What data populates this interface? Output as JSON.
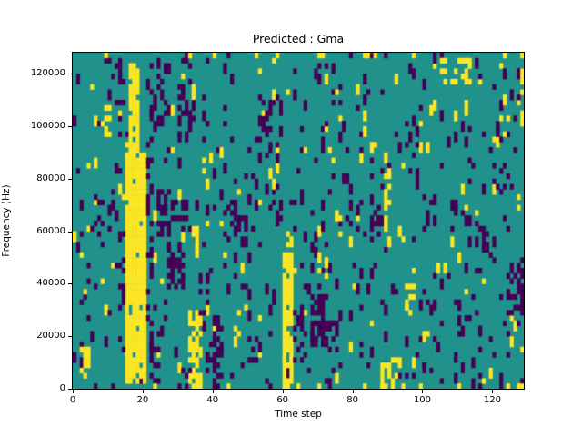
{
  "title": "Predicted : Gma",
  "axes": {
    "xlabel": "Time step",
    "ylabel": "Frequency (Hz)",
    "x_ticks": {
      "values": [
        0,
        20,
        40,
        60,
        80,
        100,
        120
      ],
      "labels": [
        "0",
        "20",
        "40",
        "60",
        "80",
        "100",
        "120"
      ]
    },
    "y_ticks": {
      "values": [
        0,
        20000,
        40000,
        60000,
        80000,
        100000,
        120000
      ],
      "labels": [
        "0",
        "20000",
        "40000",
        "60000",
        "80000",
        "100000",
        "120000"
      ]
    }
  },
  "chart_data": {
    "type": "heatmap",
    "title": "Predicted : Gma",
    "xlabel": "Time step",
    "ylabel": "Frequency (Hz)",
    "xlim": [
      0,
      129
    ],
    "ylim": [
      0,
      128000
    ],
    "grid": {
      "cols": 129,
      "rows": 64,
      "hz_per_row": 2000
    },
    "classes": [
      "purple",
      "teal",
      "yellow"
    ],
    "colors": {
      "purple": "#440154",
      "teal": "#21918c",
      "yellow": "#fde725",
      "background": "teal",
      "figure_bg": "#ffffff",
      "axis": "#000000"
    },
    "legend": "none",
    "grid_lines": "off",
    "noise": {
      "seed": 42,
      "purple_density": 0.05,
      "yellow_density": 0.018,
      "streak_prob": 0.45
    },
    "regions": [
      {
        "color": "yellow",
        "x": [
          15,
          21
        ],
        "y": [
          1000,
          90000
        ],
        "density": 0.95
      },
      {
        "color": "yellow",
        "x": [
          16,
          19
        ],
        "y": [
          90000,
          123000
        ],
        "density": 0.8
      },
      {
        "color": "yellow",
        "x": [
          2,
          5
        ],
        "y": [
          2000,
          16000
        ],
        "density": 0.5
      },
      {
        "color": "yellow",
        "x": [
          33,
          37
        ],
        "y": [
          0,
          30000
        ],
        "density": 0.6
      },
      {
        "color": "yellow",
        "x": [
          34,
          36
        ],
        "y": [
          50000,
          62000
        ],
        "density": 0.5
      },
      {
        "color": "yellow",
        "x": [
          60,
          63
        ],
        "y": [
          0,
          52000
        ],
        "density": 0.9
      },
      {
        "color": "yellow",
        "x": [
          61,
          63
        ],
        "y": [
          52000,
          62000
        ],
        "density": 0.4
      },
      {
        "color": "yellow",
        "x": [
          89,
          91
        ],
        "y": [
          54000,
          86000
        ],
        "density": 0.6
      },
      {
        "color": "yellow",
        "x": [
          88,
          93
        ],
        "y": [
          0,
          12000
        ],
        "density": 0.55
      },
      {
        "color": "yellow",
        "x": [
          95,
          98
        ],
        "y": [
          28000,
          40000
        ],
        "density": 0.45
      },
      {
        "color": "yellow",
        "x": [
          8,
          11
        ],
        "y": [
          96000,
          108000
        ],
        "density": 0.45
      },
      {
        "color": "yellow",
        "x": [
          105,
          113
        ],
        "y": [
          116000,
          126000
        ],
        "density": 0.45
      },
      {
        "color": "yellow",
        "x": [
          122,
          125
        ],
        "y": [
          96000,
          104000
        ],
        "density": 0.4
      },
      {
        "color": "yellow",
        "x": [
          56,
          58
        ],
        "y": [
          120000,
          127000
        ],
        "density": 0.5
      },
      {
        "color": "yellow",
        "x": [
          117,
          120
        ],
        "y": [
          0,
          7000
        ],
        "density": 0.4
      },
      {
        "color": "yellow",
        "x": [
          46,
          48
        ],
        "y": [
          20000,
          30000
        ],
        "density": 0.3
      },
      {
        "color": "yellow",
        "x": [
          70,
          73
        ],
        "y": [
          40000,
          52000
        ],
        "density": 0.35
      },
      {
        "color": "yellow",
        "x": [
          75,
          78
        ],
        "y": [
          55000,
          65000
        ],
        "density": 0.3
      },
      {
        "color": "yellow",
        "x": [
          128,
          129
        ],
        "y": [
          100000,
          128000
        ],
        "density": 0.3
      },
      {
        "color": "yellow",
        "x": [
          0,
          129
        ],
        "y": [
          126000,
          128000
        ],
        "density": 0.1
      },
      {
        "color": "yellow",
        "x": [
          0,
          129
        ],
        "y": [
          0,
          2000
        ],
        "density": 0.08
      },
      {
        "color": "purple",
        "x": [
          22,
          25
        ],
        "y": [
          6000,
          22000
        ],
        "density": 0.5
      },
      {
        "color": "purple",
        "x": [
          24,
          28
        ],
        "y": [
          58000,
          76000
        ],
        "density": 0.45
      },
      {
        "color": "purple",
        "x": [
          27,
          32
        ],
        "y": [
          38000,
          56000
        ],
        "density": 0.4
      },
      {
        "color": "purple",
        "x": [
          29,
          33
        ],
        "y": [
          60000,
          72000
        ],
        "density": 0.35
      },
      {
        "color": "purple",
        "x": [
          30,
          35
        ],
        "y": [
          95000,
          116000
        ],
        "density": 0.4
      },
      {
        "color": "purple",
        "x": [
          22,
          26
        ],
        "y": [
          100000,
          120000
        ],
        "density": 0.3
      },
      {
        "color": "purple",
        "x": [
          40,
          43
        ],
        "y": [
          0,
          28000
        ],
        "density": 0.5
      },
      {
        "color": "purple",
        "x": [
          36,
          39
        ],
        "y": [
          28000,
          46000
        ],
        "density": 0.35
      },
      {
        "color": "purple",
        "x": [
          44,
          47
        ],
        "y": [
          60000,
          72000
        ],
        "density": 0.3
      },
      {
        "color": "purple",
        "x": [
          47,
          50
        ],
        "y": [
          54000,
          68000
        ],
        "density": 0.35
      },
      {
        "color": "purple",
        "x": [
          52,
          56
        ],
        "y": [
          88000,
          106000
        ],
        "density": 0.3
      },
      {
        "color": "purple",
        "x": [
          50,
          53
        ],
        "y": [
          8000,
          20000
        ],
        "density": 0.35
      },
      {
        "color": "purple",
        "x": [
          63,
          67
        ],
        "y": [
          8000,
          30000
        ],
        "density": 0.5
      },
      {
        "color": "purple",
        "x": [
          68,
          73
        ],
        "y": [
          16000,
          36000
        ],
        "density": 0.5
      },
      {
        "color": "purple",
        "x": [
          73,
          76
        ],
        "y": [
          20000,
          30000
        ],
        "density": 0.3
      },
      {
        "color": "purple",
        "x": [
          10,
          15
        ],
        "y": [
          108000,
          126000
        ],
        "density": 0.4
      },
      {
        "color": "purple",
        "x": [
          5,
          9
        ],
        "y": [
          52000,
          74000
        ],
        "density": 0.35
      },
      {
        "color": "purple",
        "x": [
          12,
          15
        ],
        "y": [
          30000,
          48000
        ],
        "density": 0.3
      },
      {
        "color": "purple",
        "x": [
          85,
          88
        ],
        "y": [
          58000,
          70000
        ],
        "density": 0.35
      },
      {
        "color": "purple",
        "x": [
          100,
          104
        ],
        "y": [
          60000,
          74000
        ],
        "density": 0.3
      },
      {
        "color": "purple",
        "x": [
          115,
          119
        ],
        "y": [
          52000,
          64000
        ],
        "density": 0.35
      },
      {
        "color": "purple",
        "x": [
          124,
          129
        ],
        "y": [
          28000,
          46000
        ],
        "density": 0.35
      },
      {
        "color": "purple",
        "x": [
          110,
          114
        ],
        "y": [
          20000,
          32000
        ],
        "density": 0.3
      },
      {
        "color": "purple",
        "x": [
          95,
          99
        ],
        "y": [
          88000,
          100000
        ],
        "density": 0.3
      },
      {
        "color": "purple",
        "x": [
          56,
          60
        ],
        "y": [
          96000,
          110000
        ],
        "density": 0.3
      },
      {
        "color": "purple",
        "x": [
          78,
          82
        ],
        "y": [
          60000,
          72000
        ],
        "density": 0.25
      },
      {
        "color": "purple",
        "x": [
          120,
          124
        ],
        "y": [
          76000,
          88000
        ],
        "density": 0.3
      },
      {
        "color": "purple",
        "x": [
          30,
          34
        ],
        "y": [
          0,
          8000
        ],
        "density": 0.4
      },
      {
        "color": "purple",
        "x": [
          58,
          60
        ],
        "y": [
          62000,
          78000
        ],
        "density": 0.3
      },
      {
        "color": "purple",
        "x": [
          21,
          23
        ],
        "y": [
          0,
          90000
        ],
        "density": 0.3
      },
      {
        "color": "purple",
        "x": [
          14,
          15
        ],
        "y": [
          10000,
          60000
        ],
        "density": 0.3
      }
    ]
  }
}
